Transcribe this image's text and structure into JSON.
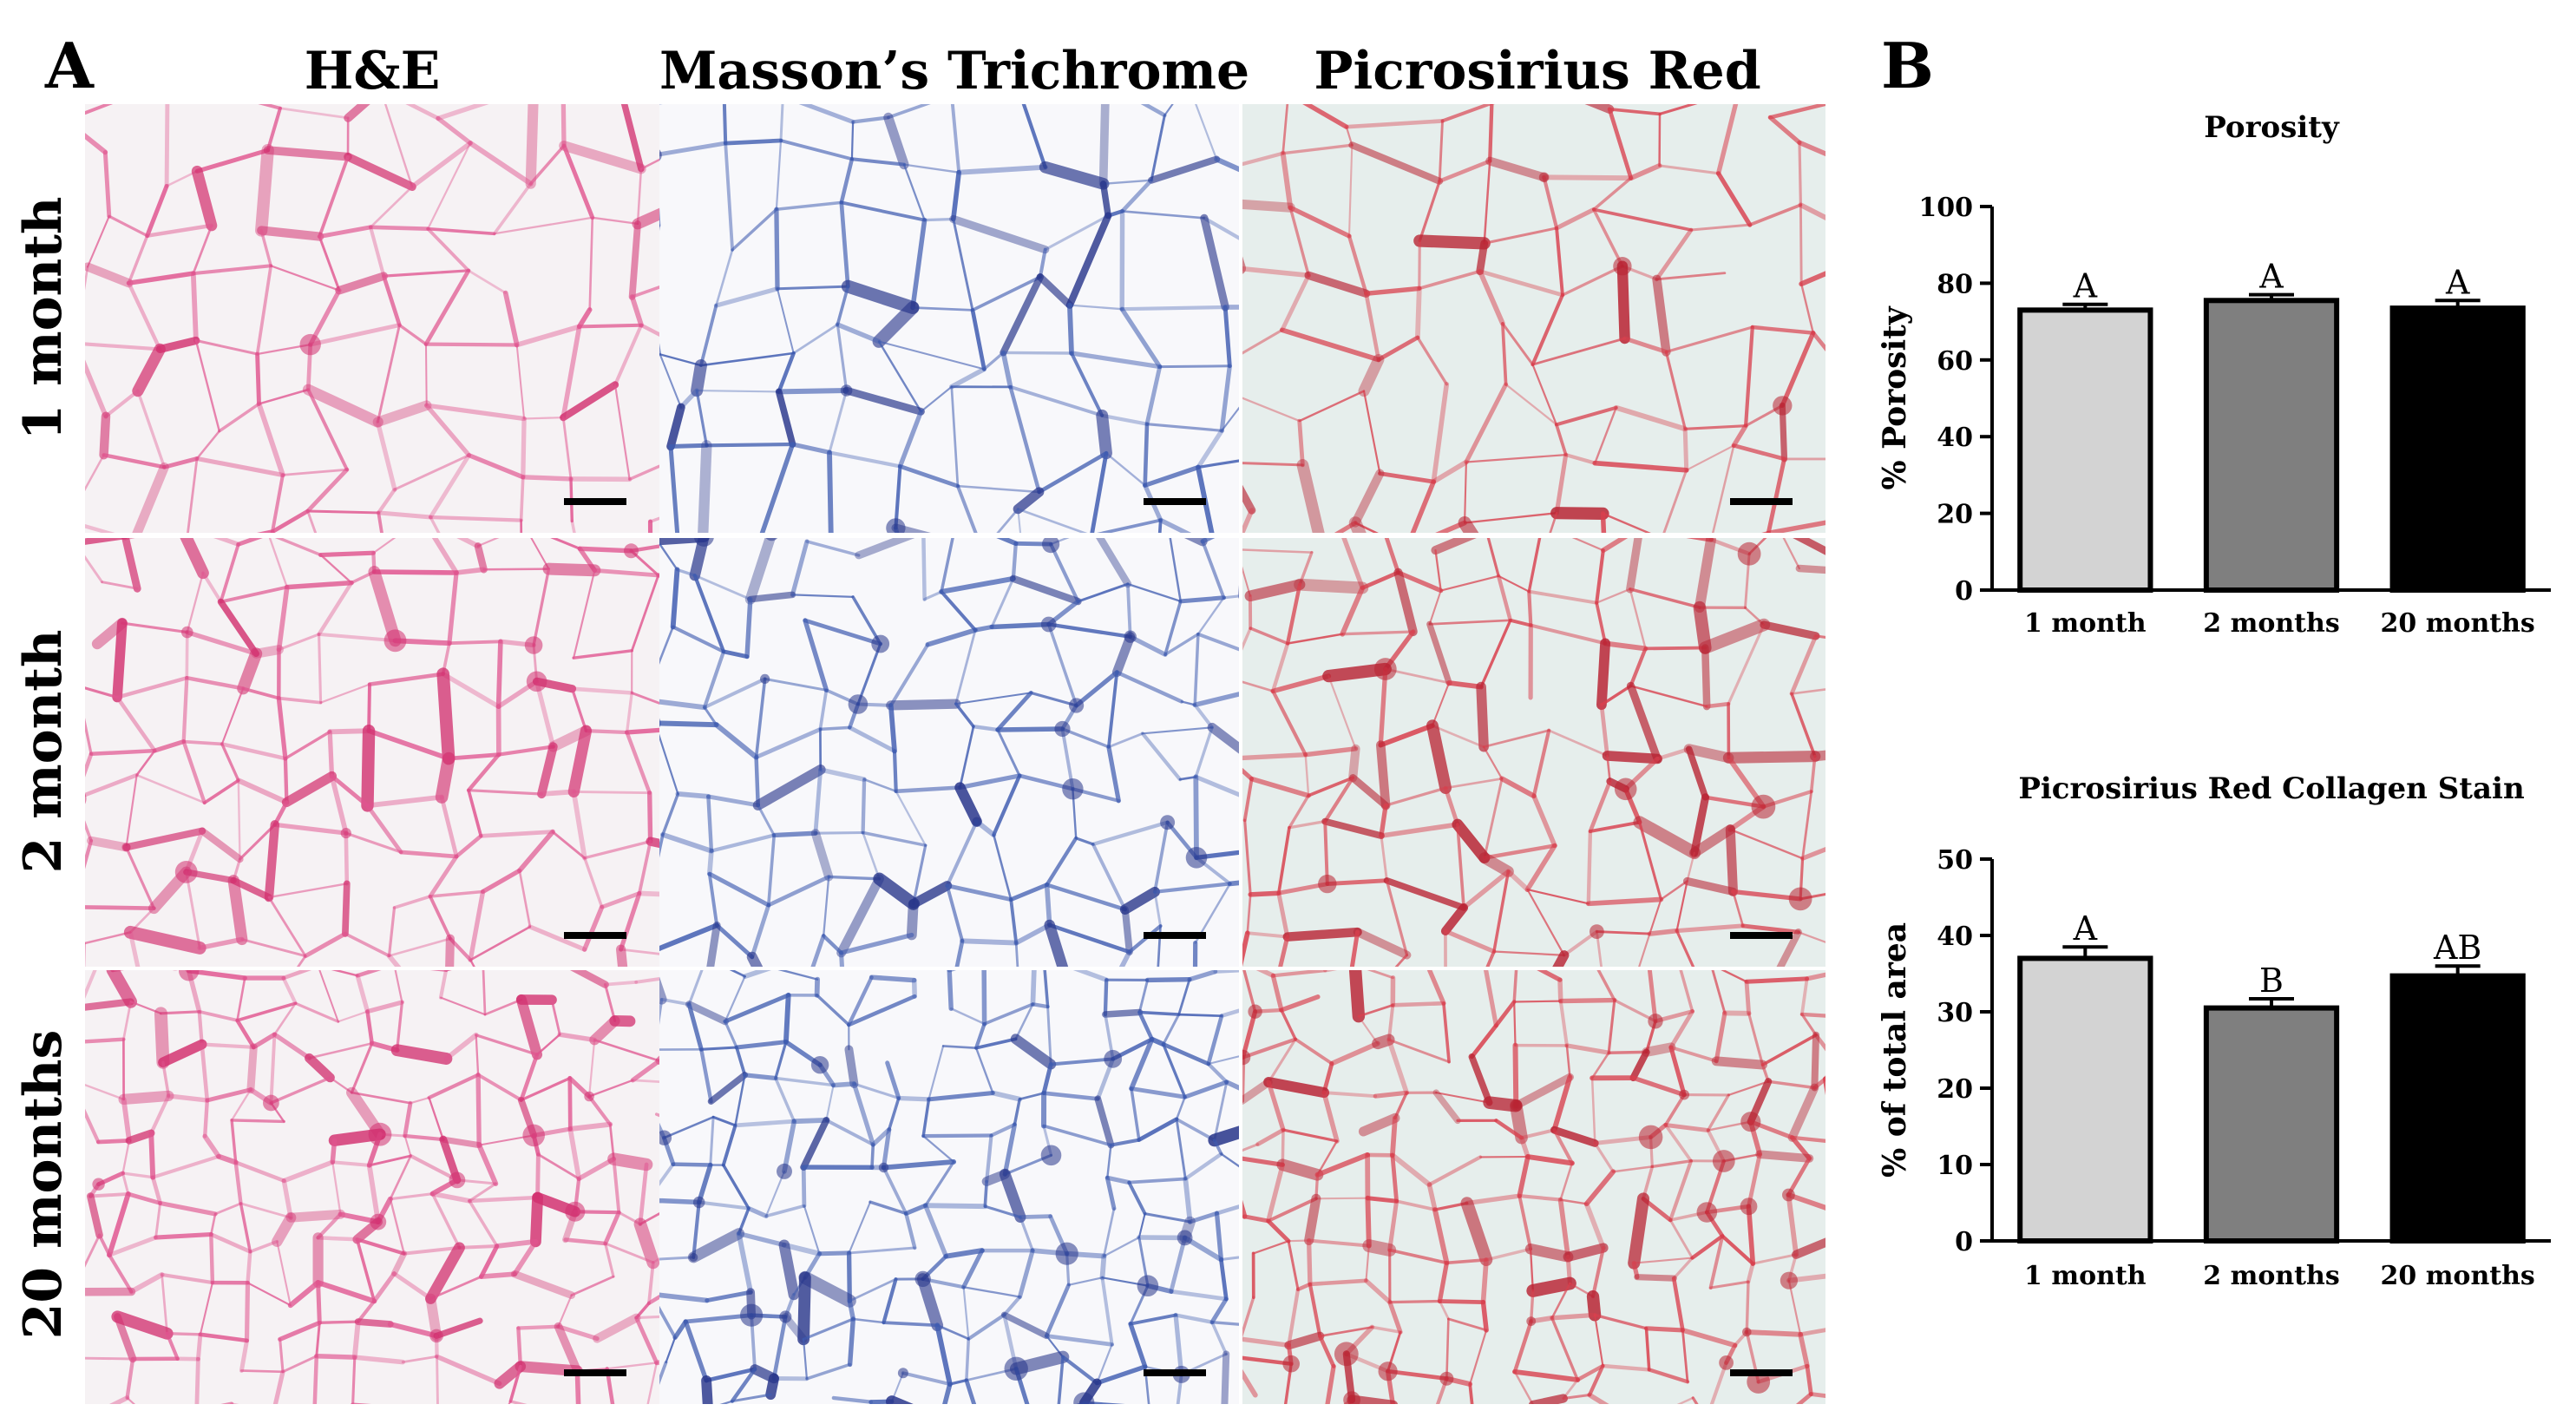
{
  "panels": {
    "a_label": "A",
    "b_label": "B"
  },
  "columns": [
    "H&E",
    "Masson’s Trichrome",
    "Picrosirius Red"
  ],
  "rows": [
    "1 month",
    "2 month",
    "20 months"
  ],
  "stain_colors": {
    "he": "#e0558f",
    "masson": "#3f5cb0",
    "picrosirius": "#d8404e"
  },
  "chart_data": [
    {
      "type": "bar",
      "title": "Porosity",
      "ylabel": "%  Porosity",
      "xlabel": "",
      "categories": [
        "1 month",
        "2 months",
        "20 months"
      ],
      "values": [
        73,
        75.5,
        73.5
      ],
      "errors": [
        1.5,
        1.5,
        2
      ],
      "letters": [
        "A",
        "A",
        "A"
      ],
      "colors": [
        "#d3d3d3",
        "#7f7f7f",
        "#000000"
      ],
      "ylim": [
        0,
        100
      ],
      "yticks": [
        0,
        20,
        40,
        60,
        80,
        100
      ]
    },
    {
      "type": "bar",
      "title": "Picrosirius Red Collagen Stain",
      "ylabel": "% of total area",
      "xlabel": "",
      "categories": [
        "1 month",
        "2 months",
        "20 months"
      ],
      "values": [
        37,
        30.5,
        34.7
      ],
      "errors": [
        1.5,
        1.2,
        1.3
      ],
      "letters": [
        "A",
        "B",
        "AB"
      ],
      "colors": [
        "#d3d3d3",
        "#7f7f7f",
        "#000000"
      ],
      "ylim": [
        0,
        50
      ],
      "yticks": [
        0,
        10,
        20,
        30,
        40,
        50
      ]
    }
  ]
}
